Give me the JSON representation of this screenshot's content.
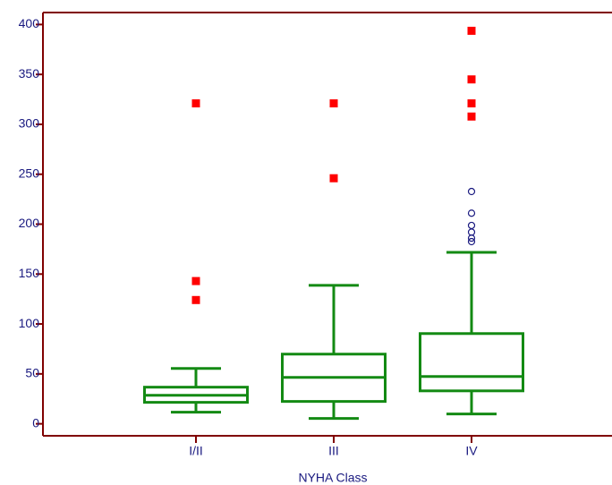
{
  "chart_data": {
    "type": "box",
    "x_label": "NYHA Class",
    "categories": [
      "I/II",
      "III",
      "IV"
    ],
    "boxes": [
      {
        "low": 11.6,
        "q1": 21.5,
        "median": 28.6,
        "q3": 36.7,
        "high": 55.5,
        "outliers": [],
        "far_outliers": [
          321,
          143,
          124
        ]
      },
      {
        "low": 5.4,
        "q1": 22.4,
        "median": 46.5,
        "q3": 69.8,
        "high": 138.7,
        "outliers": [],
        "far_outliers": [
          321,
          246
        ]
      },
      {
        "low": 9.8,
        "q1": 33,
        "median": 47.4,
        "q3": 90.4,
        "high": 171.8,
        "outliers": [
          232.7,
          211,
          198.7,
          192,
          186,
          182.5
        ],
        "far_outliers": [
          393.7,
          345,
          321,
          307.8
        ]
      }
    ],
    "box_color": "#138a13",
    "outlier_color": "#1a1a80",
    "far_outlier_color": "#ff0000",
    "axis_color": "#800000",
    "ylim": [
      -12,
      412
    ],
    "yticks": [
      0,
      50,
      100,
      150,
      200,
      250,
      300,
      350,
      400
    ]
  }
}
